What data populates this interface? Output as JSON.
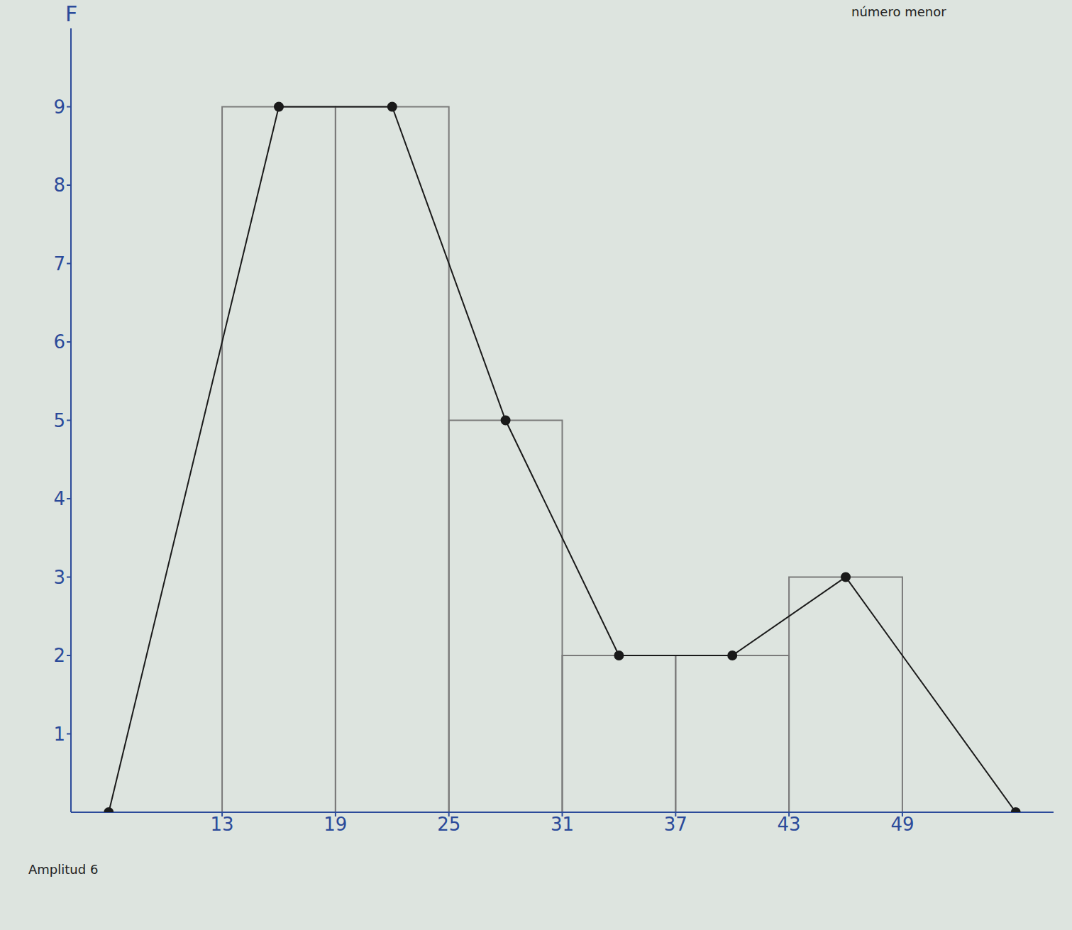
{
  "chart_data": {
    "type": "histogram",
    "bins": [
      13,
      19,
      25,
      31,
      37,
      43,
      49
    ],
    "counts": [
      9,
      9,
      5,
      2,
      2,
      3
    ],
    "color": "#7a7a7a",
    "series": [
      {
        "type": "line",
        "x": [
          7,
          16,
          22,
          28,
          34,
          40,
          46,
          55
        ],
        "values": [
          0,
          9,
          9,
          5,
          2,
          2,
          3,
          0
        ],
        "color": "#1a1a1a",
        "marker": "circle"
      }
    ],
    "y_label": "F",
    "annotations": [
      "número menor",
      "Amplitud 6"
    ],
    "xlim": [
      5,
      57
    ],
    "ylim": [
      0,
      10
    ],
    "xticks": [
      13,
      19,
      25,
      31,
      37,
      43,
      49
    ],
    "yticks": [
      1,
      2,
      3,
      4,
      5,
      6,
      7,
      8,
      9
    ],
    "grid": false
  }
}
